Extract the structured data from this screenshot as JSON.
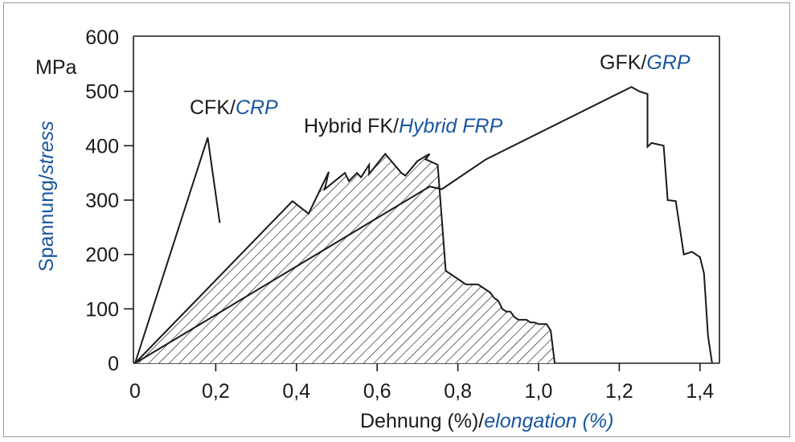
{
  "chart_data": {
    "type": "line",
    "title": "",
    "xlabel": "Dehnung (%)/",
    "xlabel_italic": "elongation (%)",
    "ylabel": "Spannung/",
    "ylabel_italic": "stress",
    "yunit": "MPa",
    "xlim": [
      0,
      1.45
    ],
    "ylim": [
      0,
      600
    ],
    "xticks": [
      0,
      0.2,
      0.4,
      0.6,
      0.8,
      1.0,
      1.2,
      1.4
    ],
    "xtick_labels": [
      "0",
      "0,2",
      "0,4",
      "0,6",
      "0,8",
      "1,0",
      "1,2",
      "1,4"
    ],
    "yticks": [
      0,
      100,
      200,
      300,
      400,
      500,
      600
    ],
    "ytick_labels": [
      "0",
      "100",
      "200",
      "300",
      "400",
      "500",
      "600"
    ],
    "grid": false,
    "series": [
      {
        "name": "CFK/",
        "name_italic": "CRP",
        "hatched": false,
        "x": [
          0,
          0.18,
          0.21
        ],
        "y": [
          0,
          415,
          258
        ]
      },
      {
        "name": "Hybrid FK/",
        "name_italic": "Hybrid FRP",
        "hatched": true,
        "x": [
          0,
          0.39,
          0.43,
          0.48,
          0.47,
          0.52,
          0.53,
          0.55,
          0.56,
          0.58,
          0.58,
          0.62,
          0.66,
          0.67,
          0.7,
          0.73,
          0.72,
          0.75,
          0.77,
          0.79,
          0.8,
          0.81,
          0.82,
          0.85,
          0.88,
          0.89,
          0.9,
          0.91,
          0.92,
          0.93,
          0.94,
          0.95,
          0.97,
          0.98,
          0.99,
          1.0,
          1.02,
          1.03,
          1.04
        ],
        "y": [
          0,
          298,
          275,
          352,
          320,
          350,
          335,
          350,
          342,
          365,
          348,
          385,
          350,
          345,
          372,
          385,
          375,
          365,
          170,
          160,
          155,
          150,
          145,
          145,
          130,
          120,
          115,
          100,
          95,
          95,
          85,
          80,
          80,
          75,
          75,
          72,
          72,
          60,
          0
        ]
      },
      {
        "name": "GFK/",
        "name_italic": "GRP",
        "hatched": false,
        "x": [
          0,
          0.73,
          0.76,
          0.86,
          0.87,
          1.23,
          1.25,
          1.27,
          1.27,
          1.28,
          1.31,
          1.32,
          1.34,
          1.36,
          1.38,
          1.4,
          1.41,
          1.42,
          1.43
        ],
        "y": [
          0,
          325,
          320,
          370,
          375,
          508,
          500,
          495,
          398,
          405,
          400,
          300,
          298,
          200,
          205,
          195,
          165,
          50,
          0
        ]
      }
    ]
  },
  "colors": {
    "line": "#1a1a1a",
    "accent": "#1a56a0",
    "frame": "#9a9a9a"
  }
}
